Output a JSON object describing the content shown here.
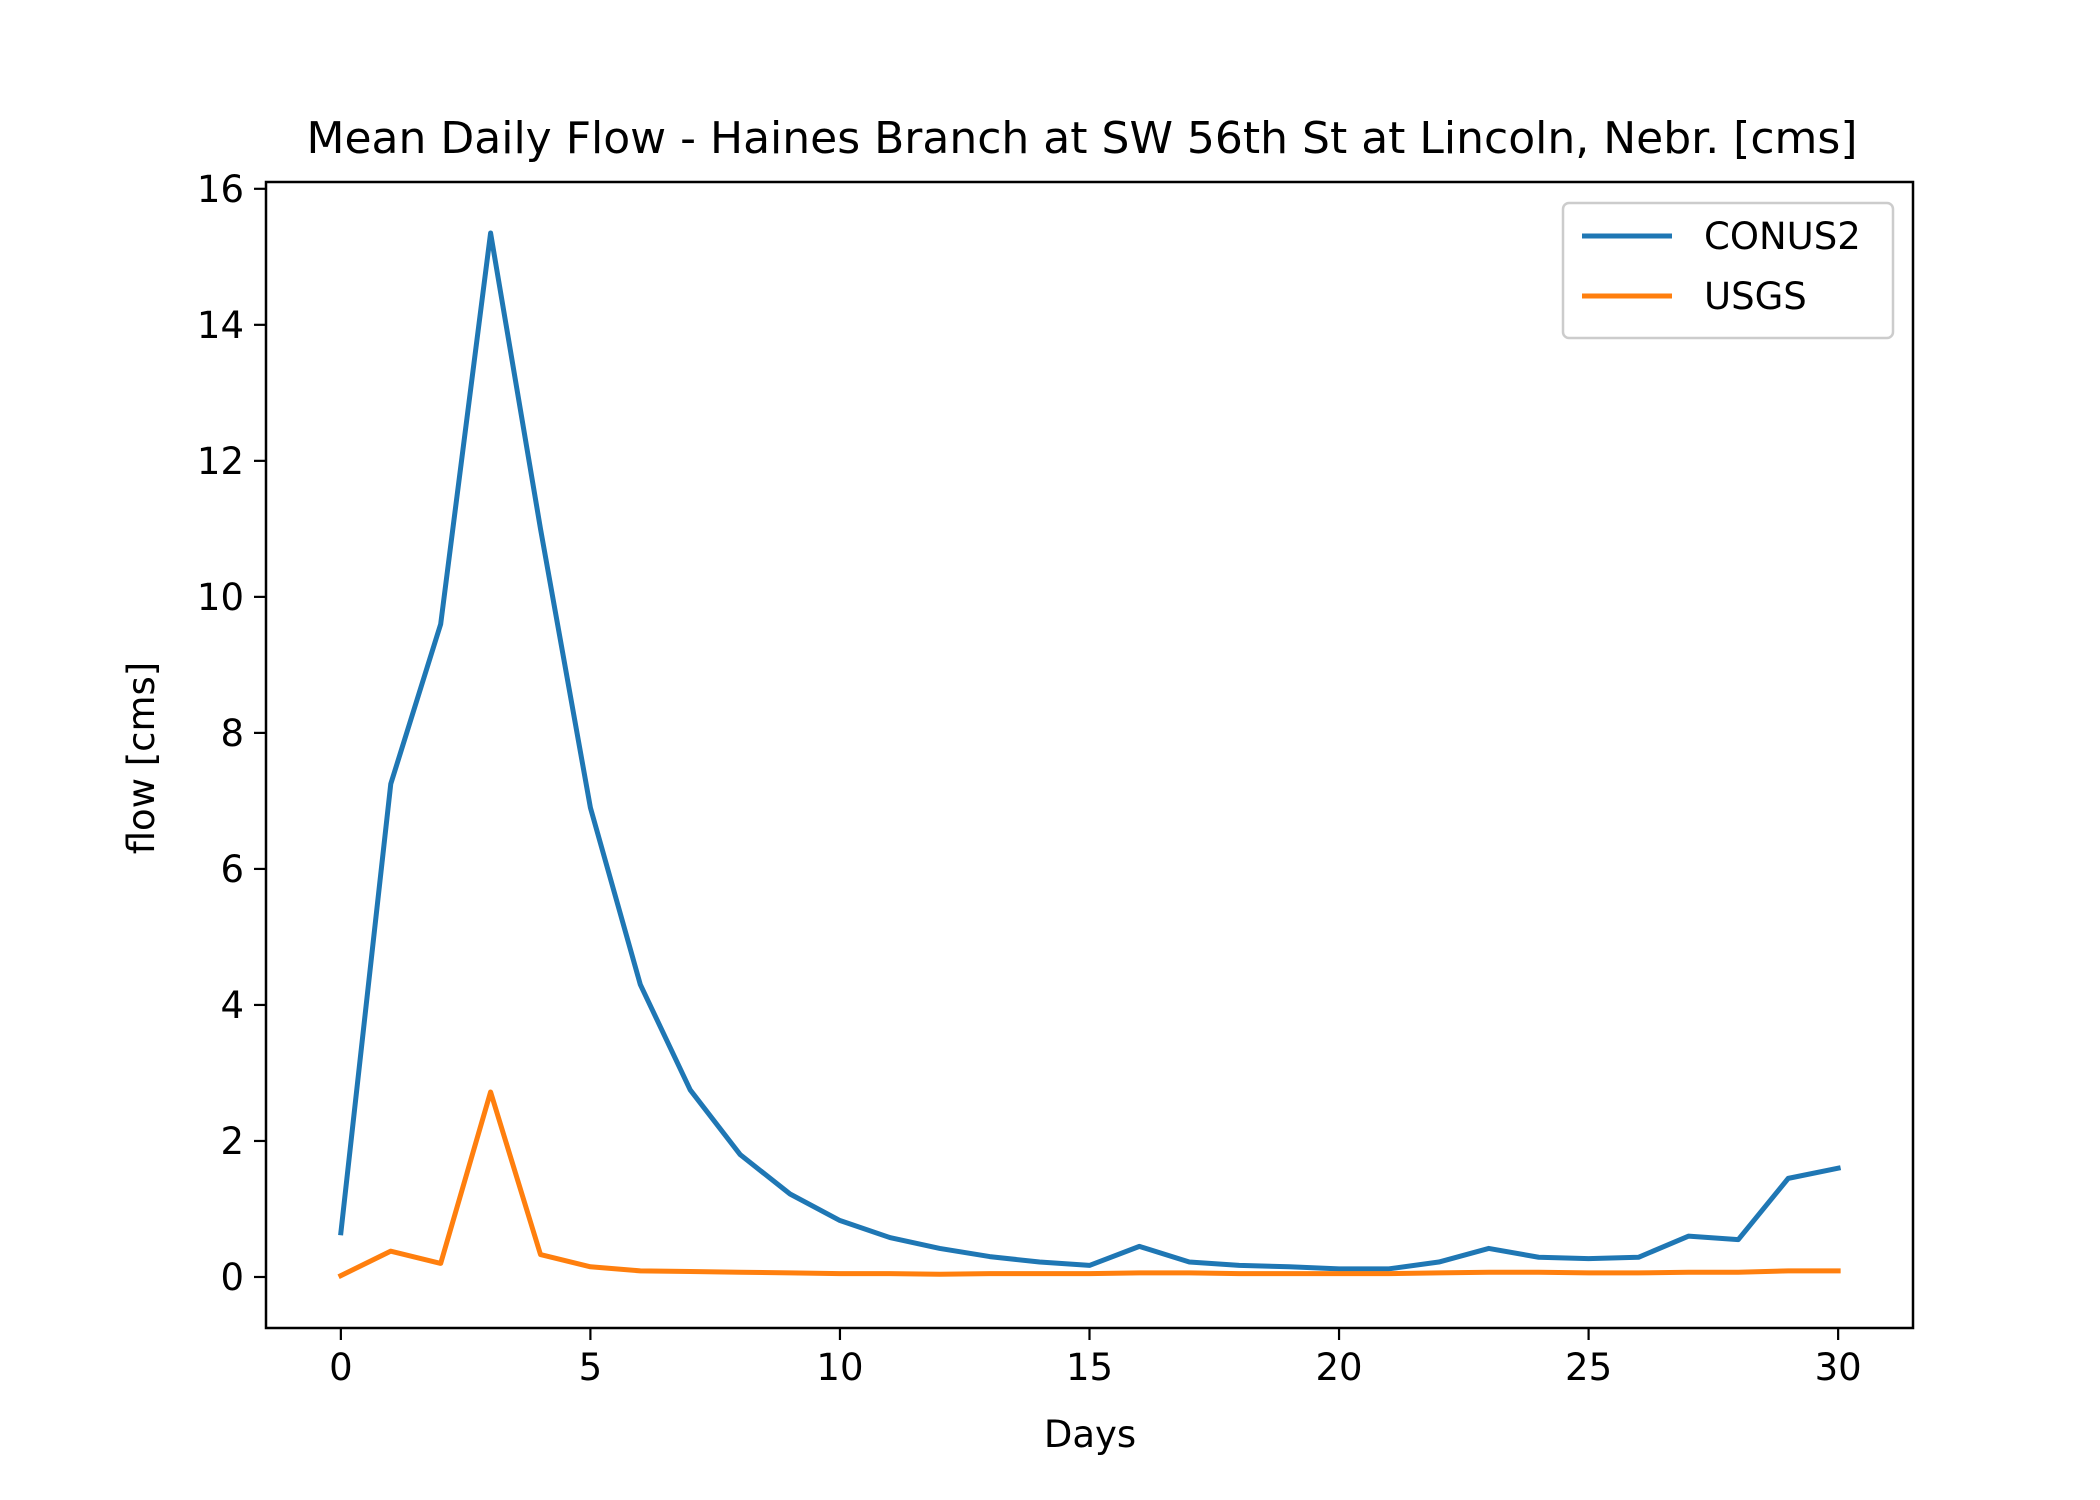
{
  "chart_data": {
    "type": "line",
    "title": "Mean Daily Flow - Haines Branch at SW 56th St at Lincoln, Nebr. [cms]",
    "xlabel": "Days",
    "ylabel": "flow [cms]",
    "xlim": [
      -1.5,
      31.5
    ],
    "ylim": [
      -0.75,
      16.1
    ],
    "xticks": [
      0,
      5,
      10,
      15,
      20,
      25,
      30
    ],
    "yticks": [
      0,
      2,
      4,
      6,
      8,
      10,
      12,
      14,
      16
    ],
    "grid": false,
    "legend_position": "top-right",
    "x": [
      0,
      1,
      2,
      3,
      4,
      5,
      6,
      7,
      8,
      9,
      10,
      11,
      12,
      13,
      14,
      15,
      16,
      17,
      18,
      19,
      20,
      21,
      22,
      23,
      24,
      25,
      26,
      27,
      28,
      29,
      30
    ],
    "series": [
      {
        "name": "CONUS2",
        "color": "#1f77b4",
        "values": [
          0.65,
          7.25,
          9.6,
          15.35,
          11.0,
          6.9,
          4.3,
          2.75,
          1.8,
          1.22,
          0.83,
          0.58,
          0.42,
          0.3,
          0.22,
          0.17,
          0.45,
          0.22,
          0.17,
          0.15,
          0.12,
          0.12,
          0.22,
          0.42,
          0.29,
          0.27,
          0.29,
          0.6,
          0.55,
          1.45,
          1.6
        ]
      },
      {
        "name": "USGS",
        "color": "#ff7f0e",
        "values": [
          0.02,
          0.38,
          0.2,
          2.72,
          0.33,
          0.15,
          0.09,
          0.08,
          0.07,
          0.06,
          0.05,
          0.05,
          0.04,
          0.05,
          0.05,
          0.05,
          0.06,
          0.06,
          0.05,
          0.05,
          0.05,
          0.05,
          0.06,
          0.07,
          0.07,
          0.06,
          0.06,
          0.07,
          0.07,
          0.09,
          0.09
        ]
      }
    ]
  }
}
